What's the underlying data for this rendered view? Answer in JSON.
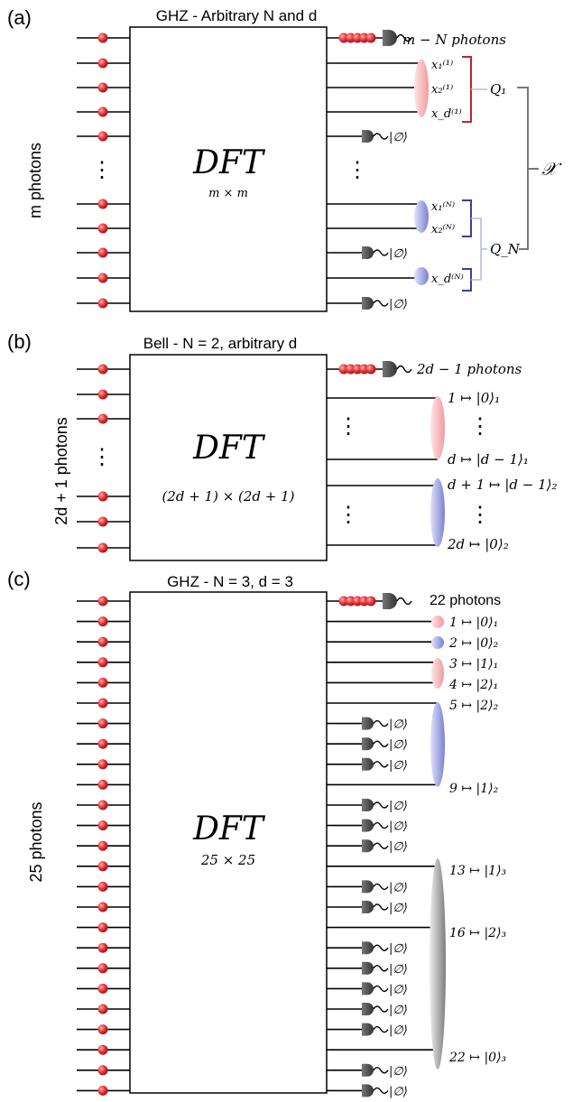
{
  "colors": {
    "photon": "#e8393b",
    "pink": "#f4b4b8",
    "blue": "#8a8fd8",
    "gray": "#8c8c8c",
    "detector": "#444444",
    "bracket_red": "#c0262e",
    "bracket_blue": "#3a3fa0"
  },
  "panel_a": {
    "label": "(a)",
    "title": "GHZ - Arbitrary N and d",
    "left_label": "m photons",
    "box_title": "DFT",
    "box_sub": "m × m",
    "det_label": "m − N  photons",
    "outputs": [
      "x₁⁽¹⁾",
      "x₂⁽¹⁾",
      "x_d⁽¹⁾",
      "x₁⁽ᴺ⁾",
      "x₂⁽ᴺ⁾",
      "x_d⁽ᴺ⁾"
    ],
    "vacuum": "|∅⟩",
    "q1": "Q₁",
    "qn": "Q_N",
    "chi": "𝒳",
    "dots": "⋮"
  },
  "panel_b": {
    "label": "(b)",
    "title": "Bell - N = 2, arbitrary d",
    "left_label": "2d + 1 photons",
    "box_title": "DFT",
    "box_sub": "(2d + 1) × (2d + 1)",
    "det_label": "2d − 1  photons",
    "outputs": [
      "1 ↦ |0⟩₁",
      "d ↦ |d − 1⟩₁",
      "d + 1 ↦ |d − 1⟩₂",
      "2d ↦ |0⟩₂"
    ],
    "dots": "⋮"
  },
  "panel_c": {
    "label": "(c)",
    "title": "GHZ - N = 3,  d = 3",
    "left_label": "25 photons",
    "box_title": "DFT",
    "box_sub": "25 × 25",
    "det_label": "22 photons",
    "vacuum": "|∅⟩",
    "outputs": [
      "1 ↦ |0⟩₁",
      "2 ↦ |0⟩₂",
      "3 ↦ |1⟩₁",
      "4 ↦ |2⟩₁",
      "5 ↦ |2⟩₂",
      "9 ↦ |1⟩₂",
      "13 ↦ |1⟩₃",
      "16 ↦ |2⟩₃",
      "22 ↦ |0⟩₃"
    ]
  }
}
